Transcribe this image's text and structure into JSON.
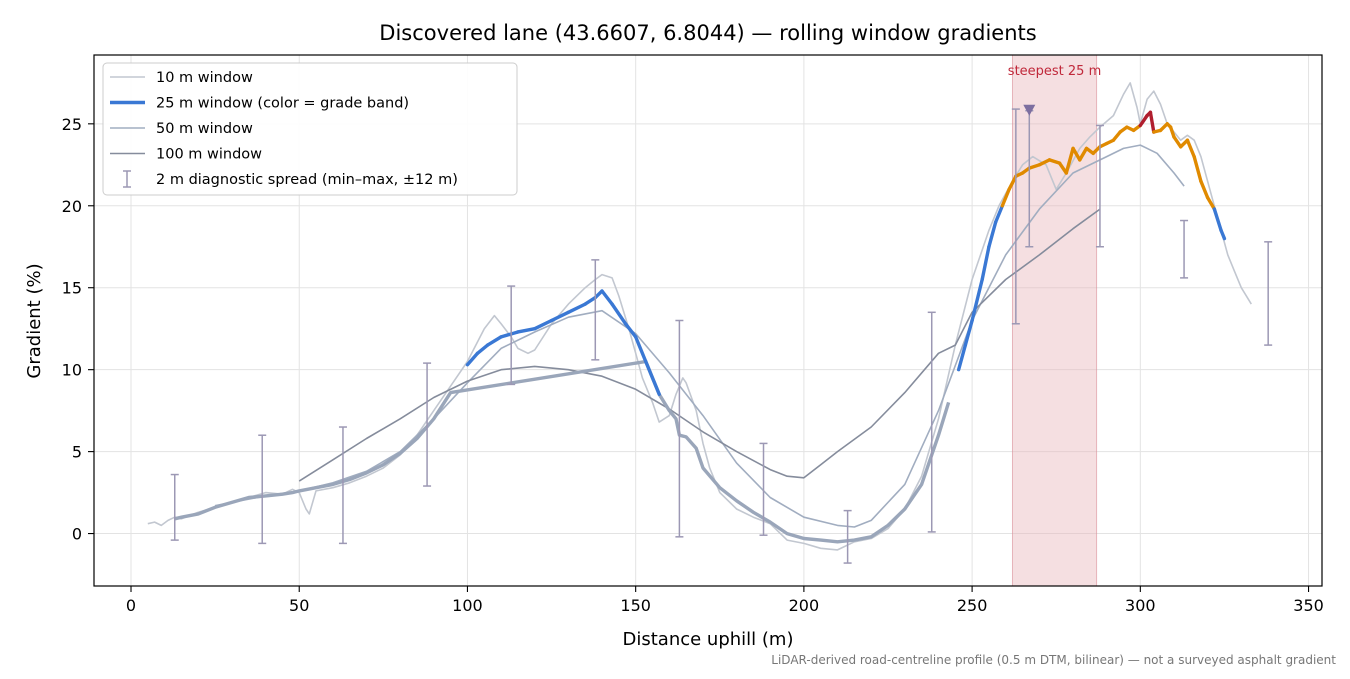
{
  "chart_data": {
    "type": "line",
    "title": "Discovered lane (43.6607, 6.8044) — rolling window gradients",
    "xlabel": "Distance uphill (m)",
    "ylabel": "Gradient (%)",
    "footnote": "LiDAR-derived road-centreline profile (0.5 m DTM, bilinear) — not a surveyed asphalt gradient",
    "xlim": [
      -11,
      354
    ],
    "ylim": [
      -3.2,
      29.2
    ],
    "xticks": [
      0,
      50,
      100,
      150,
      200,
      250,
      300,
      350
    ],
    "yticks": [
      0,
      5,
      10,
      15,
      20,
      25
    ],
    "grid": true,
    "legend_position": "top-left",
    "highlight": {
      "x0": 262,
      "x1": 287,
      "label": "steepest 25 m",
      "color": "#e7b3b8"
    },
    "marker": {
      "x": 267,
      "y": 25.8,
      "color": "#7d6fa0"
    },
    "grade_band_colors": {
      "low": "#3a78d4",
      "mid": "#e08a00",
      "high": "#b01e2e"
    },
    "series": [
      {
        "name": "10 m window",
        "color": "#c2c7d0",
        "x": [
          5,
          7,
          9,
          11,
          13,
          15,
          20,
          25,
          30,
          35,
          40,
          45,
          48,
          50,
          52,
          53,
          55,
          60,
          65,
          70,
          75,
          80,
          85,
          90,
          95,
          100,
          105,
          108,
          110,
          113,
          115,
          118,
          120,
          125,
          130,
          135,
          138,
          140,
          143,
          145,
          148,
          150,
          152,
          155,
          157,
          160,
          162,
          164,
          165,
          168,
          170,
          172,
          175,
          180,
          185,
          190,
          195,
          200,
          205,
          210,
          215,
          220,
          225,
          230,
          235,
          240,
          245,
          250,
          255,
          258,
          262,
          265,
          268,
          272,
          275,
          278,
          282,
          285,
          288,
          292,
          295,
          297,
          299,
          300,
          302,
          304,
          306,
          308,
          310,
          312,
          314,
          316,
          318,
          320,
          322,
          324,
          326,
          328,
          330,
          333
        ],
        "y": [
          0.6,
          0.7,
          0.5,
          0.8,
          1.0,
          0.9,
          1.3,
          1.6,
          1.9,
          2.2,
          2.5,
          2.4,
          2.7,
          2.5,
          1.5,
          1.2,
          2.6,
          2.8,
          3.1,
          3.5,
          4.0,
          4.8,
          6.0,
          7.5,
          9.0,
          10.5,
          12.5,
          13.3,
          12.8,
          12.0,
          11.3,
          11.0,
          11.2,
          12.8,
          14.0,
          15.0,
          15.5,
          15.8,
          15.6,
          14.5,
          12.5,
          11.0,
          9.5,
          8.0,
          6.8,
          7.2,
          8.5,
          9.5,
          9.2,
          7.5,
          5.5,
          4.0,
          2.5,
          1.5,
          1.0,
          0.6,
          -0.4,
          -0.6,
          -0.9,
          -1.0,
          -0.5,
          -0.3,
          0.3,
          1.5,
          3.5,
          7.0,
          11.5,
          15.5,
          18.5,
          20.0,
          21.5,
          22.5,
          23.0,
          22.5,
          21.0,
          22.0,
          23.5,
          24.2,
          24.8,
          25.5,
          26.8,
          27.5,
          26.0,
          25.0,
          26.5,
          27.0,
          26.2,
          25.0,
          24.5,
          24.0,
          24.3,
          24.0,
          23.0,
          21.5,
          20.0,
          18.5,
          17.0,
          16.0,
          15.0,
          14.0
        ]
      },
      {
        "name": "25 m window (color = grade band)",
        "color": "#3a78d4",
        "thresholds": [
          20,
          25
        ],
        "x": [
          13,
          15,
          20,
          25,
          30,
          35,
          40,
          45,
          48,
          50,
          55,
          60,
          65,
          70,
          75,
          80,
          85,
          90,
          95,
          100,
          103,
          106,
          110,
          115,
          120,
          125,
          130,
          135,
          138,
          140,
          143,
          147,
          150,
          153,
          157,
          160,
          162,
          163,
          165,
          168,
          170,
          175,
          180,
          185,
          190,
          195,
          200,
          205,
          210,
          215,
          220,
          225,
          230,
          235,
          240,
          243,
          246,
          248,
          250,
          253,
          255,
          257,
          259,
          261,
          263,
          265,
          267,
          270,
          273,
          276,
          278,
          280,
          282,
          284,
          286,
          288,
          290,
          292,
          294,
          296,
          298,
          300,
          302,
          303,
          304,
          306,
          308,
          309,
          310,
          312,
          314,
          316,
          318,
          320,
          322,
          324,
          325
        ],
        "y": [
          0.9,
          1.0,
          1.2,
          1.6,
          1.9,
          2.2,
          2.3,
          2.4,
          2.5,
          2.6,
          2.8,
          3.0,
          3.3,
          3.7,
          4.2,
          4.9,
          5.8,
          7.0,
          8.6,
          10.3,
          11.0,
          11.5,
          12.0,
          12.3,
          12.5,
          13.0,
          13.5,
          14.0,
          14.4,
          14.8,
          14.0,
          12.8,
          12.0,
          10.5,
          8.5,
          7.5,
          7.0,
          6.0,
          5.9,
          5.2,
          4.0,
          2.8,
          2.0,
          1.3,
          0.7,
          0.0,
          -0.3,
          -0.4,
          -0.5,
          -0.4,
          -0.2,
          0.5,
          1.5,
          3.0,
          6.0,
          8.0,
          10.0,
          11.5,
          13.0,
          15.5,
          17.5,
          19.0,
          20.0,
          21.0,
          21.8,
          22.0,
          22.3,
          22.5,
          22.8,
          22.6,
          22.0,
          23.5,
          22.8,
          23.5,
          23.2,
          23.6,
          23.8,
          24.0,
          24.5,
          24.8,
          24.6,
          24.9,
          25.5,
          25.7,
          24.5,
          24.6,
          25.0,
          24.8,
          24.2,
          23.6,
          24.0,
          23.0,
          21.5,
          20.5,
          19.8,
          18.5,
          18.0
        ]
      },
      {
        "name": "50 m window",
        "color": "#a1adc0",
        "x": [
          25,
          30,
          40,
          50,
          60,
          70,
          80,
          90,
          100,
          110,
          120,
          130,
          140,
          150,
          160,
          170,
          180,
          190,
          200,
          210,
          215,
          220,
          230,
          240,
          250,
          260,
          270,
          280,
          290,
          295,
          300,
          305,
          310,
          313
        ],
        "y": [
          1.7,
          1.9,
          2.3,
          2.6,
          3.1,
          3.8,
          5.0,
          7.0,
          9.2,
          11.3,
          12.3,
          13.2,
          13.6,
          12.2,
          9.8,
          7.2,
          4.3,
          2.2,
          1.0,
          0.5,
          0.4,
          0.8,
          3.0,
          7.5,
          13.0,
          17.0,
          19.8,
          22.0,
          23.0,
          23.5,
          23.7,
          23.2,
          22.0,
          21.2
        ]
      },
      {
        "name": "100 m window",
        "color": "#858c9c",
        "x": [
          50,
          60,
          70,
          80,
          90,
          100,
          110,
          120,
          130,
          140,
          150,
          160,
          170,
          180,
          190,
          195,
          200,
          205,
          210,
          220,
          230,
          240,
          245,
          250,
          260,
          270,
          280,
          288
        ],
        "y": [
          3.2,
          4.5,
          5.8,
          7.0,
          8.3,
          9.3,
          10.0,
          10.2,
          10.0,
          9.6,
          8.8,
          7.6,
          6.2,
          5.0,
          3.9,
          3.5,
          3.4,
          4.2,
          5.0,
          6.5,
          8.6,
          11.0,
          11.5,
          13.5,
          15.5,
          17.0,
          18.6,
          19.8
        ]
      }
    ],
    "errorbars": {
      "name": "2 m diagnostic spread (min–max, ±12 m)",
      "color": "#9c98b4",
      "x": [
        13,
        39,
        63,
        88,
        113,
        138,
        163,
        188,
        213,
        238,
        263,
        267,
        288,
        313,
        338
      ],
      "low": [
        -0.4,
        -0.6,
        -0.6,
        2.9,
        9.1,
        10.6,
        -0.2,
        -0.1,
        -1.8,
        0.1,
        12.8,
        17.5,
        17.5,
        15.6,
        11.5
      ],
      "high": [
        3.6,
        6.0,
        6.5,
        10.4,
        15.1,
        16.7,
        13.0,
        5.5,
        1.4,
        13.5,
        25.9,
        25.8,
        24.9,
        19.1,
        17.8
      ]
    }
  }
}
